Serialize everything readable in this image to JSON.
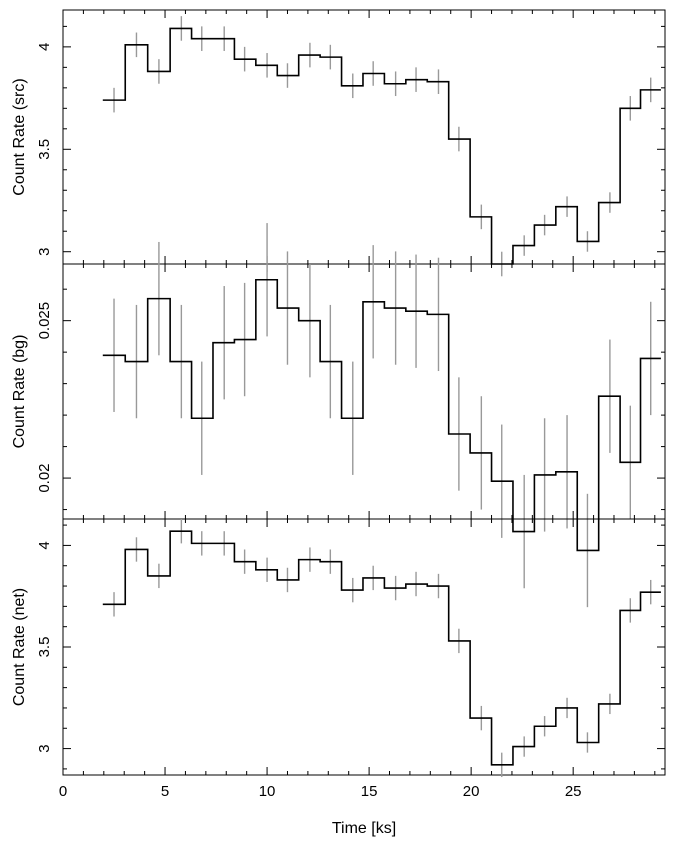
{
  "chart_data": [
    {
      "type": "line",
      "step": true,
      "ylabel": "Count Rate (src)",
      "yticks": [
        "3",
        "3.5",
        "4"
      ],
      "ylim": [
        2.94,
        4.18
      ],
      "series_color": "#000000",
      "error_color": "#999999",
      "x": [
        2.5,
        3.6,
        4.7,
        5.8,
        6.8,
        7.9,
        8.9,
        10.0,
        11.0,
        12.1,
        13.1,
        14.2,
        15.2,
        16.3,
        17.3,
        18.4,
        19.4,
        20.5,
        21.5,
        22.6,
        23.6,
        24.7,
        25.7,
        26.8,
        27.8,
        28.8
      ],
      "values": [
        3.74,
        4.01,
        3.88,
        4.09,
        4.04,
        4.04,
        3.94,
        3.91,
        3.86,
        3.96,
        3.95,
        3.81,
        3.87,
        3.82,
        3.84,
        3.83,
        3.55,
        3.17,
        2.94,
        3.03,
        3.13,
        3.22,
        3.05,
        3.24,
        3.7,
        3.79
      ],
      "errors": [
        0.06,
        0.06,
        0.06,
        0.06,
        0.06,
        0.06,
        0.06,
        0.06,
        0.06,
        0.06,
        0.06,
        0.06,
        0.06,
        0.06,
        0.06,
        0.06,
        0.06,
        0.06,
        0.06,
        0.05,
        0.05,
        0.05,
        0.05,
        0.05,
        0.06,
        0.06
      ]
    },
    {
      "type": "line",
      "step": true,
      "ylabel": "Count Rate (bg)",
      "yticks": [
        "0.02",
        "0.025"
      ],
      "ylim": [
        0.0187,
        0.0268
      ],
      "series_color": "#000000",
      "error_color": "#999999",
      "x": [
        2.5,
        3.6,
        4.7,
        5.8,
        6.8,
        7.9,
        8.9,
        10.0,
        11.0,
        12.1,
        13.1,
        14.2,
        15.2,
        16.3,
        17.3,
        18.4,
        19.4,
        20.5,
        21.5,
        22.6,
        23.6,
        24.7,
        25.7,
        26.8,
        27.8,
        28.8
      ],
      "values": [
        0.0239,
        0.0237,
        0.0257,
        0.0237,
        0.0219,
        0.0243,
        0.0244,
        0.0263,
        0.0254,
        0.025,
        0.0237,
        0.0219,
        0.0256,
        0.0254,
        0.0253,
        0.0252,
        0.0214,
        0.0208,
        0.0199,
        0.0183,
        0.0201,
        0.0202,
        0.0177,
        0.0226,
        0.0205,
        0.0238
      ],
      "errors": [
        0.0018,
        0.0018,
        0.0018,
        0.0018,
        0.0018,
        0.0018,
        0.0018,
        0.0018,
        0.0018,
        0.0018,
        0.0018,
        0.0018,
        0.0018,
        0.0018,
        0.0018,
        0.0018,
        0.0018,
        0.0018,
        0.0018,
        0.0018,
        0.0018,
        0.0018,
        0.0018,
        0.0018,
        0.0018,
        0.0018
      ]
    },
    {
      "type": "line",
      "step": true,
      "ylabel": "Count Rate (net)",
      "yticks": [
        "3",
        "3.5",
        "4"
      ],
      "ylim": [
        2.87,
        4.13
      ],
      "series_color": "#000000",
      "error_color": "#999999",
      "xlabel": "Time [ks]",
      "xticks": [
        "0",
        "5",
        "10",
        "15",
        "20",
        "25"
      ],
      "xlim": [
        0,
        29.5
      ],
      "x": [
        2.5,
        3.6,
        4.7,
        5.8,
        6.8,
        7.9,
        8.9,
        10.0,
        11.0,
        12.1,
        13.1,
        14.2,
        15.2,
        16.3,
        17.3,
        18.4,
        19.4,
        20.5,
        21.5,
        22.6,
        23.6,
        24.7,
        25.7,
        26.8,
        27.8,
        28.8
      ],
      "values": [
        3.71,
        3.98,
        3.85,
        4.07,
        4.01,
        4.01,
        3.92,
        3.88,
        3.83,
        3.93,
        3.92,
        3.78,
        3.84,
        3.79,
        3.81,
        3.8,
        3.53,
        3.15,
        2.92,
        3.01,
        3.11,
        3.2,
        3.03,
        3.22,
        3.68,
        3.77
      ],
      "errors": [
        0.06,
        0.06,
        0.06,
        0.06,
        0.06,
        0.06,
        0.06,
        0.06,
        0.06,
        0.06,
        0.06,
        0.06,
        0.06,
        0.06,
        0.06,
        0.06,
        0.06,
        0.06,
        0.06,
        0.05,
        0.05,
        0.05,
        0.05,
        0.05,
        0.06,
        0.06
      ]
    }
  ]
}
